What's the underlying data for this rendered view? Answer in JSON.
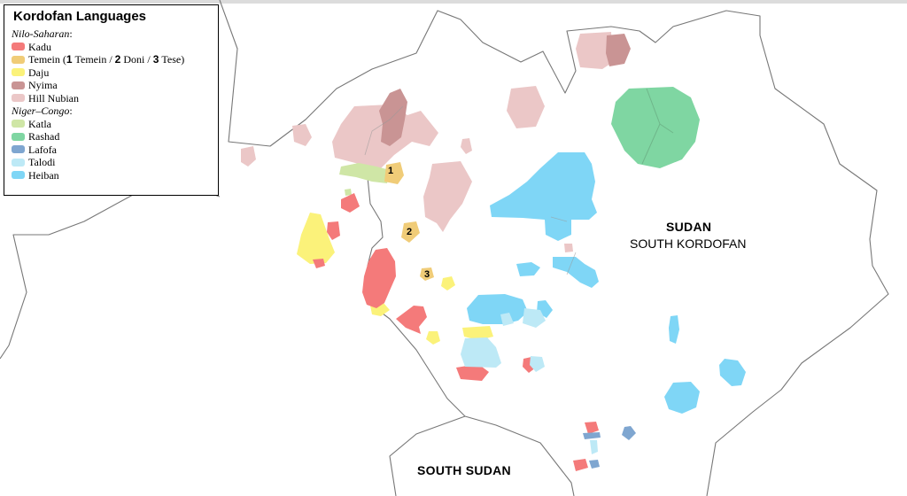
{
  "map": {
    "title": "Kordofan Languages",
    "labels": {
      "country": "SUDAN",
      "region": "SOUTH KORDOFAN",
      "neighbor": "SOUTH SUDAN"
    },
    "markers": [
      "1",
      "2",
      "3"
    ]
  },
  "legend": {
    "groups": [
      {
        "name": "Nilo-Saharan",
        "suffix": ":",
        "items": [
          {
            "label": "Kadu",
            "color": "#f47a7a"
          },
          {
            "label": "Temein",
            "color": "#f0cc78",
            "subparts": [
              "1",
              "Temein",
              "2",
              "Doni",
              "3",
              "Tese"
            ]
          },
          {
            "label": "Daju",
            "color": "#fbf27a"
          },
          {
            "label": "Nyima",
            "color": "#c99494"
          },
          {
            "label": "Hill Nubian",
            "color": "#ebc7c7"
          }
        ]
      },
      {
        "name": "Niger–Congo",
        "suffix": ":",
        "items": [
          {
            "label": "Katla",
            "color": "#cfe6a6"
          },
          {
            "label": "Rashad",
            "color": "#7fd6a2"
          },
          {
            "label": "Lafofa",
            "color": "#7fa6d0"
          },
          {
            "label": "Talodi",
            "color": "#bde9f6"
          },
          {
            "label": "Heiban",
            "color": "#7fd6f6"
          }
        ]
      }
    ]
  }
}
